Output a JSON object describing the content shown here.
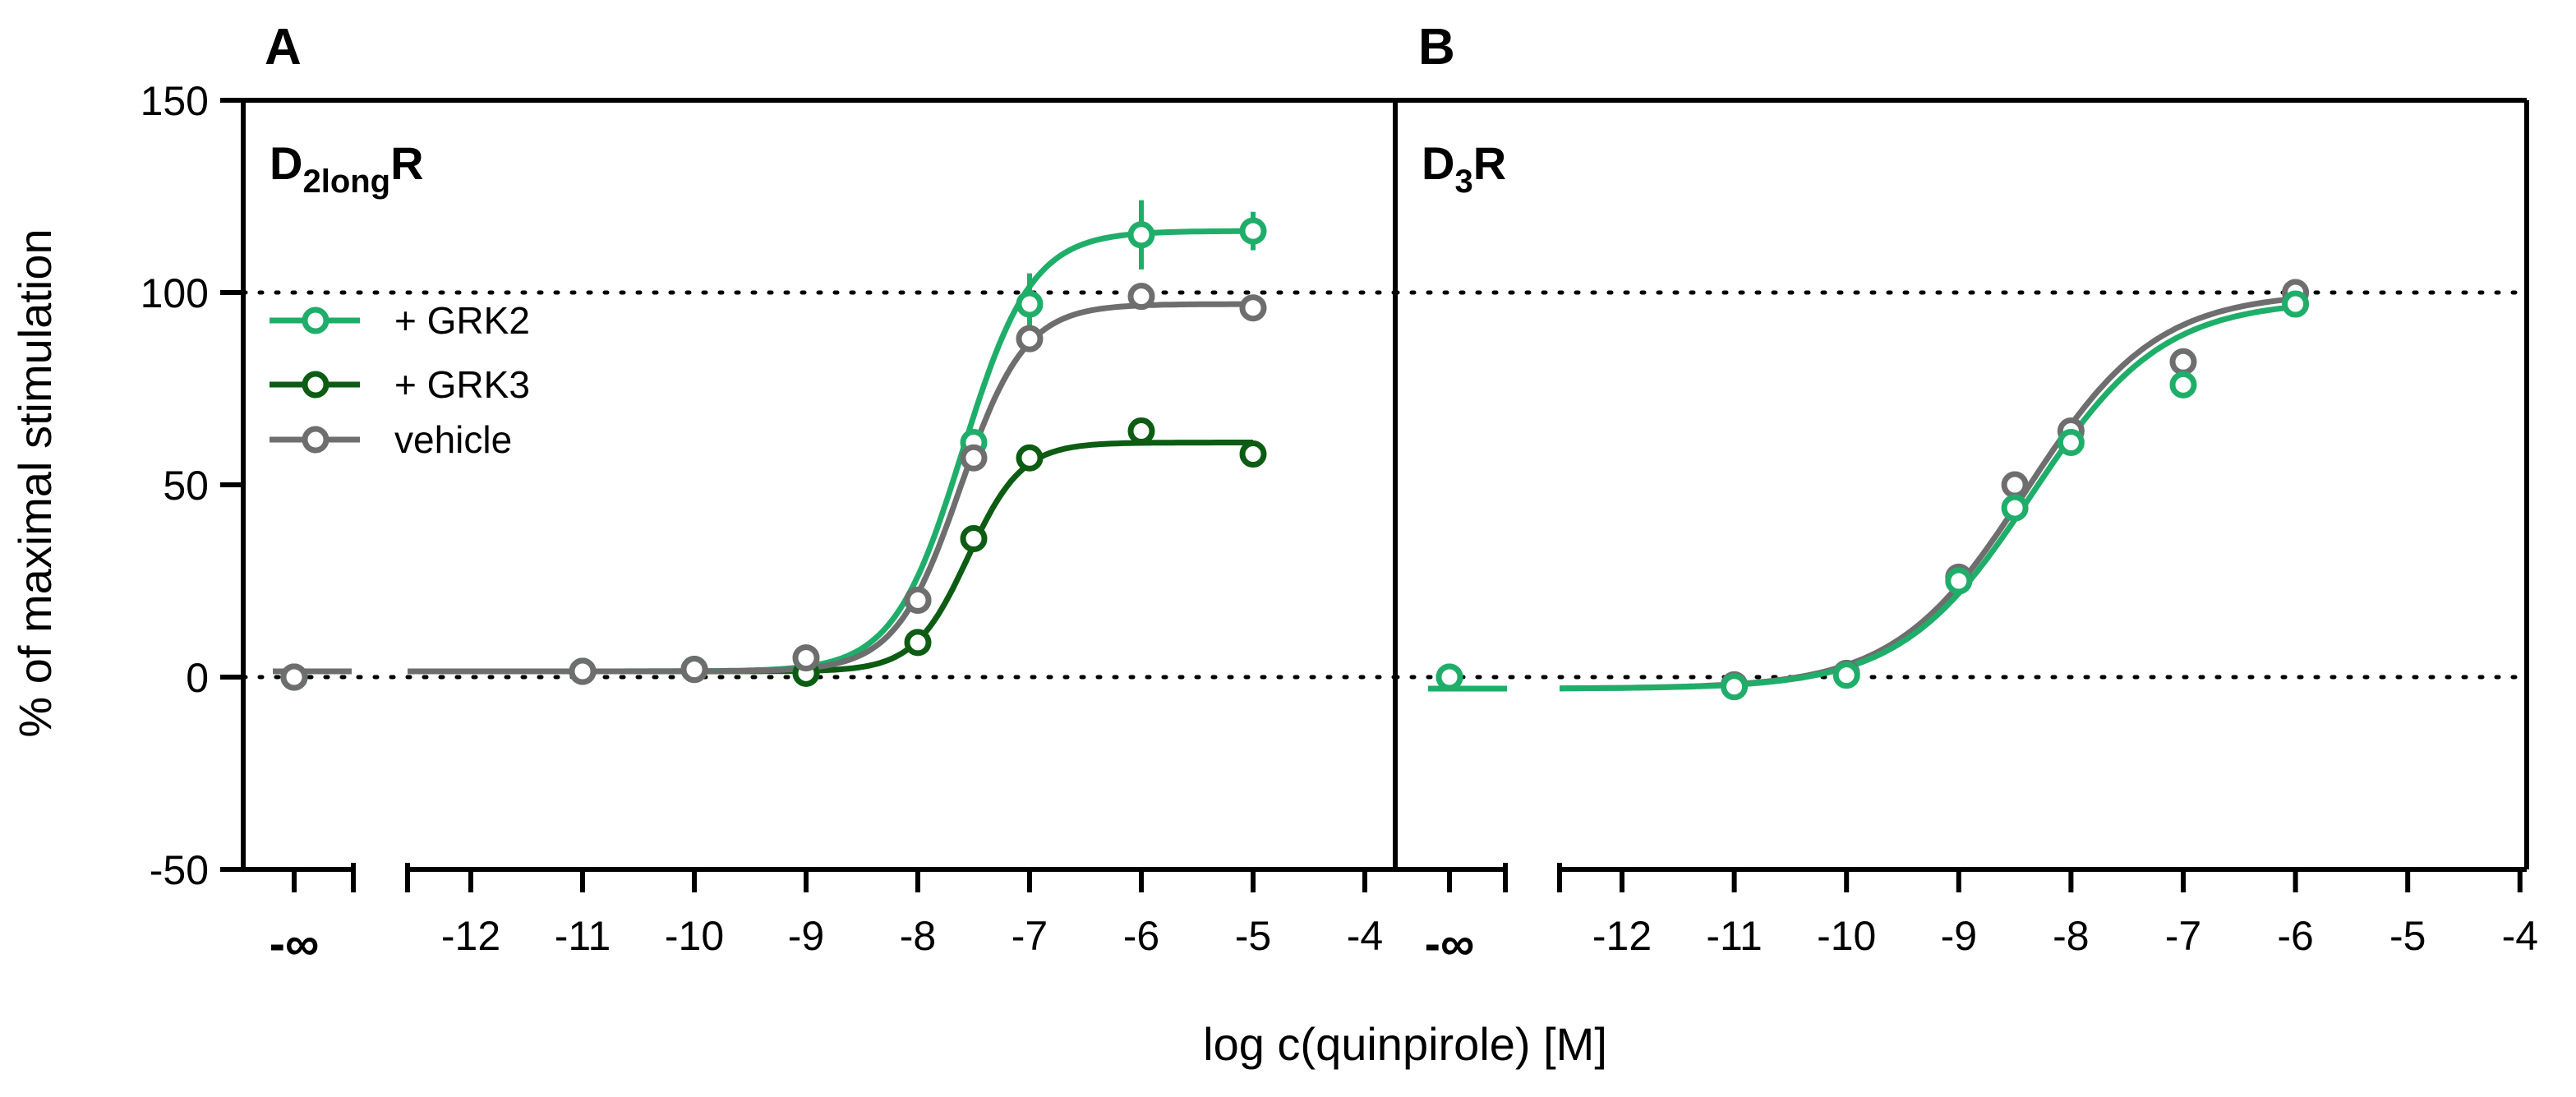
{
  "chart_data": [
    {
      "type": "line",
      "panel_letter": "A",
      "title": "D",
      "title_sub": "2long",
      "title_suffix": "R",
      "xlabel": "log c(quinpirole) [M]",
      "ylabel": "% of maximal stimulation",
      "ylim": [
        -50,
        150
      ],
      "yticks": [
        -50,
        0,
        50,
        100,
        150
      ],
      "xlim": [
        -12.5,
        -3.8
      ],
      "xticks": [
        -12,
        -11,
        -10,
        -9,
        -8,
        -7,
        -6,
        -5,
        -4
      ],
      "xtick_labels": [
        "-12",
        "-11",
        "-10",
        "-9",
        "-8",
        "-7",
        "-6",
        "-5",
        "-4"
      ],
      "x_neg_inf_label": "-∞",
      "reference_lines": [
        0,
        100
      ],
      "legend": {
        "position": "upper-left",
        "entries": [
          "+ GRK2",
          "+ GRK3",
          "vehicle"
        ]
      },
      "series": [
        {
          "name": "+ GRK2",
          "color": "#1fae6a",
          "neg_inf_value": 0,
          "x": [
            -11,
            -10,
            -9,
            -8,
            -7.5,
            -7,
            -6,
            -5
          ],
          "y": [
            1.5,
            2,
            1,
            20,
            61,
            97,
            115,
            116
          ],
          "err": [
            0,
            0,
            0,
            2,
            3,
            8,
            9,
            5
          ],
          "fit": {
            "bottom": 1.5,
            "top": 116,
            "logEC50": -7.6,
            "hill": 1.4
          }
        },
        {
          "name": "+ GRK3",
          "color": "#0d5c14",
          "neg_inf_value": 0,
          "x": [
            -11,
            -10,
            -9,
            -8,
            -7.5,
            -7,
            -6,
            -5
          ],
          "y": [
            1.5,
            2,
            1,
            9,
            36,
            57,
            64,
            58
          ],
          "err": [
            0,
            0,
            0,
            0,
            0,
            0,
            0,
            0
          ],
          "fit": {
            "bottom": 1.5,
            "top": 61,
            "logEC50": -7.55,
            "hill": 1.8
          }
        },
        {
          "name": "vehicle",
          "color": "#6e6e6e",
          "neg_inf_value": 0,
          "x": [
            -11,
            -10,
            -9,
            -8,
            -7.5,
            -7,
            -6,
            -5
          ],
          "y": [
            1.5,
            2,
            5,
            20,
            57,
            88,
            99,
            96
          ],
          "err": [
            0,
            0,
            0,
            0,
            0,
            0,
            0,
            0
          ],
          "fit": {
            "bottom": 1.5,
            "top": 97,
            "logEC50": -7.62,
            "hill": 1.5
          }
        }
      ]
    },
    {
      "type": "line",
      "panel_letter": "B",
      "title": "D",
      "title_sub": "3",
      "title_suffix": "R",
      "xlabel": "log c(quinpirole) [M]",
      "ylim": [
        -50,
        150
      ],
      "xlim": [
        -12.5,
        -3.8
      ],
      "xticks": [
        -12,
        -11,
        -10,
        -9,
        -8,
        -7,
        -6,
        -5,
        -4
      ],
      "xtick_labels": [
        "-12",
        "-11",
        "-10",
        "-9",
        "-8",
        "-7",
        "-6",
        "-5",
        "-4"
      ],
      "x_neg_inf_label": "-∞",
      "reference_lines": [
        0,
        100
      ],
      "series": [
        {
          "name": "vehicle",
          "color": "#6e6e6e",
          "neg_inf_value": 0,
          "x": [
            -11,
            -10,
            -9,
            -8.5,
            -8,
            -7,
            -6
          ],
          "y": [
            -2,
            1,
            26,
            50,
            64,
            82,
            100
          ],
          "fit": {
            "bottom": -3,
            "top": 100,
            "logEC50": -8.4,
            "hill": 0.75
          }
        },
        {
          "name": "+ GRK2",
          "color": "#1fae6a",
          "neg_inf_value": 0,
          "x": [
            -11,
            -10,
            -9,
            -8.5,
            -8,
            -7,
            -6
          ],
          "y": [
            -2.5,
            0.5,
            25,
            44,
            61,
            76,
            97
          ],
          "fit": {
            "bottom": -3,
            "top": 98,
            "logEC50": -8.35,
            "hill": 0.75
          }
        }
      ]
    }
  ]
}
